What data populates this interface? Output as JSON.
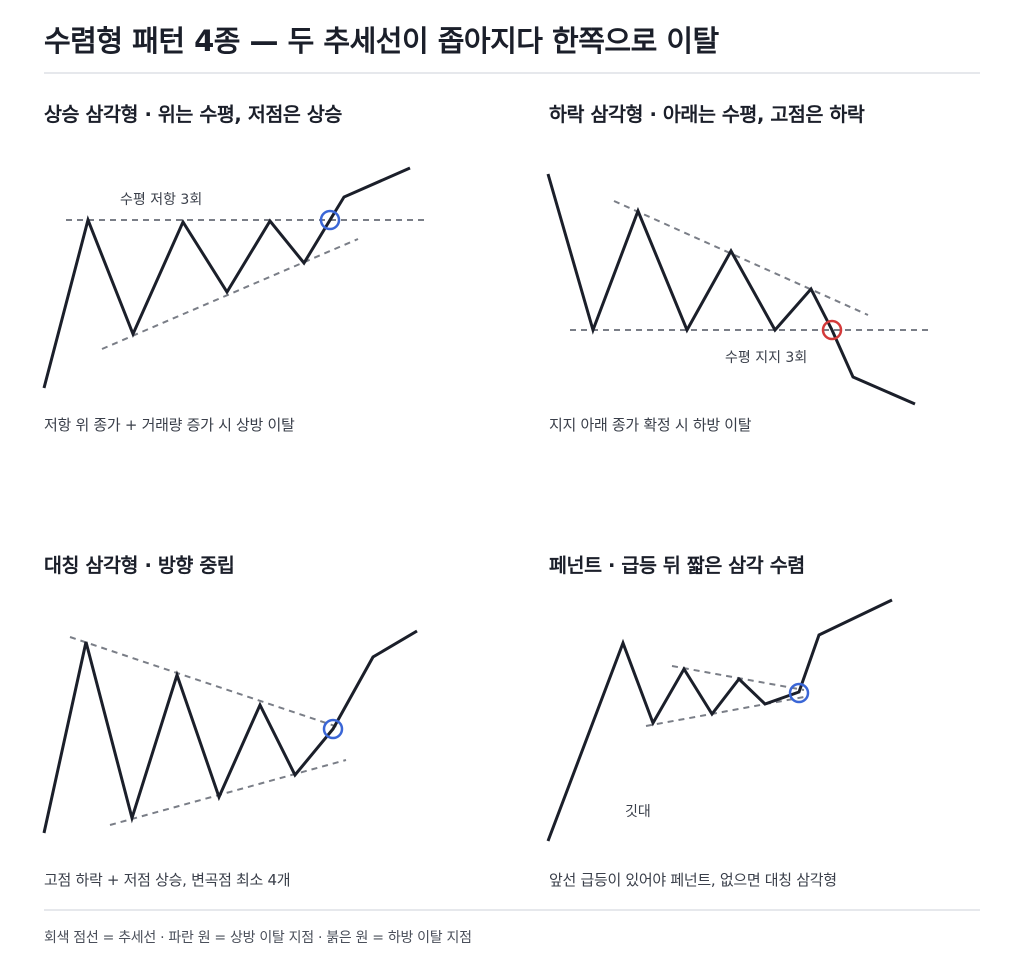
{
  "title": "수렴형 패턴 4종 — 두 추세선이 좁아지다 한쪽으로 이탈",
  "panels": [
    {
      "title": "상승 삼각형 · 위는 수평, 저점은 상승",
      "annotation": "수평 저항 3회",
      "caption": "저항 위 종가 + 거래량 증가 시 상방 이탈",
      "breakout": "up"
    },
    {
      "title": "하락 삼각형 · 아래는 수평, 고점은 하락",
      "annotation": "수평 지지 3회",
      "caption": "지지 아래 종가 확정 시 하방 이탈",
      "breakout": "down"
    },
    {
      "title": "대칭 삼각형 · 방향 중립",
      "annotation": "",
      "caption": "고점 하락 + 저점 상승, 변곡점 최소 4개",
      "breakout": "up"
    },
    {
      "title": "페넌트 · 급등 뒤 짧은 삼각 수렴",
      "annotation": "깃대",
      "caption": "앞선 급등이 있어야 페넌트, 없으면 대칭 삼각형",
      "breakout": "up"
    }
  ],
  "legend": "회색 점선 = 추세선 · 파란 원 = 상방 이탈 지점 · 붉은 원 = 하방 이탈 지점",
  "colors": {
    "price_line": "#1b1f2a",
    "trendline": "#7a7e87",
    "breakout_up": "#3a66d6",
    "breakout_down": "#d43a3a",
    "divider": "#e6e8ec"
  }
}
